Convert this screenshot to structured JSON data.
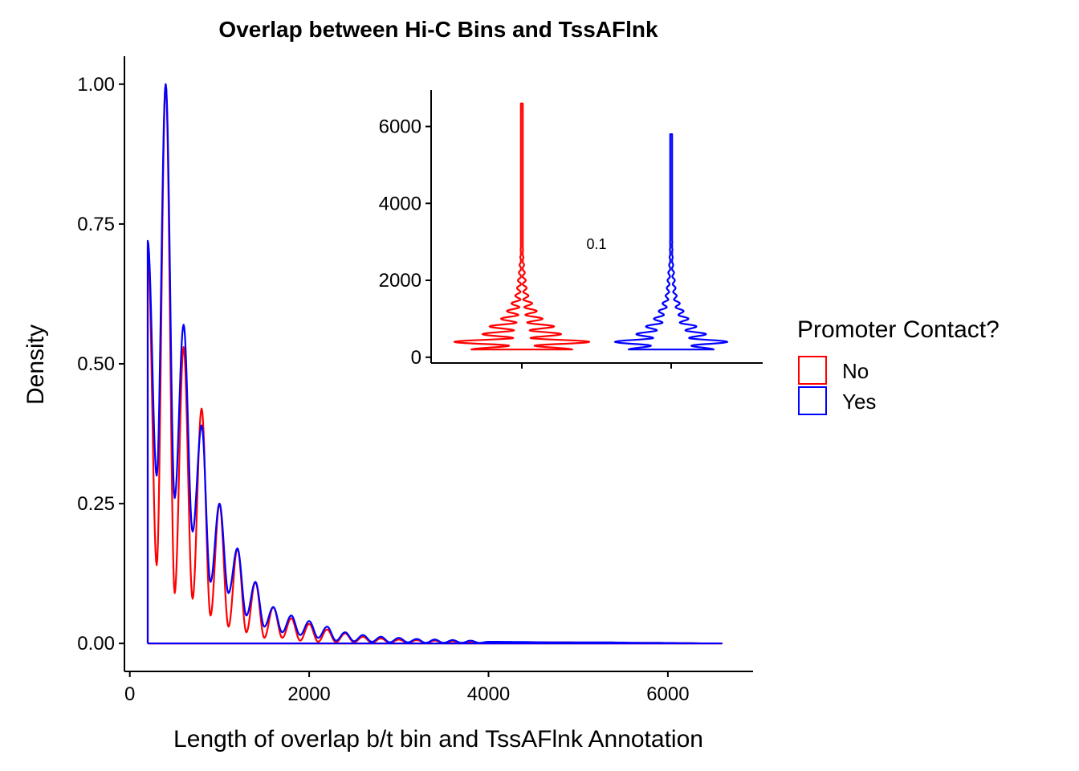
{
  "chart_data": [
    {
      "type": "line",
      "subtype": "density",
      "title": "Overlap between Hi-C Bins and TssAFlnk",
      "xlabel": "Length of overlap b/t bin and TssAFlnk Annotation",
      "ylabel": "Density",
      "xlim": [
        -60,
        6950
      ],
      "ylim": [
        -0.05,
        1.05
      ],
      "x_ticks": [
        0,
        2000,
        4000,
        6000
      ],
      "x_tick_labels": [
        "0",
        "2000",
        "4000",
        "6000"
      ],
      "y_ticks": [
        0,
        0.25,
        0.5,
        0.75,
        1.0
      ],
      "y_tick_labels": [
        "0.00",
        "0.25",
        "0.50",
        "0.75",
        "1.00"
      ],
      "grid": false,
      "legend_position": "right",
      "series": [
        {
          "name": "No",
          "color": "#ff0000",
          "x": [
            200,
            300,
            400,
            500,
            600,
            700,
            800,
            900,
            1000,
            1100,
            1200,
            1300,
            1400,
            1500,
            1600,
            1700,
            1800,
            1900,
            2000,
            2100,
            2200,
            2300,
            2400,
            2500,
            2600,
            2700,
            2800,
            2900,
            3000,
            3100,
            3200,
            3300,
            3400,
            3500,
            3600,
            3700,
            3800,
            3900,
            4000,
            4800,
            5200,
            5800,
            6600
          ],
          "values": [
            0.71,
            0.14,
            1.0,
            0.09,
            0.53,
            0.08,
            0.42,
            0.05,
            0.25,
            0.03,
            0.17,
            0.02,
            0.11,
            0.01,
            0.065,
            0.01,
            0.045,
            0.005,
            0.035,
            0.003,
            0.025,
            0.002,
            0.018,
            0.002,
            0.012,
            0.001,
            0.009,
            0.001,
            0.007,
            0.001,
            0.006,
            0.001,
            0.005,
            0.001,
            0.004,
            0.001,
            0.003,
            0.0,
            0.002,
            0.002,
            0.001,
            0.001,
            0.0
          ]
        },
        {
          "name": "Yes",
          "color": "#0000ff",
          "x": [
            200,
            300,
            400,
            500,
            600,
            700,
            800,
            900,
            1000,
            1100,
            1200,
            1300,
            1400,
            1500,
            1600,
            1700,
            1800,
            1900,
            2000,
            2100,
            2200,
            2300,
            2400,
            2500,
            2600,
            2700,
            2800,
            2900,
            3000,
            3100,
            3200,
            3300,
            3400,
            3500,
            3600,
            3700,
            3800,
            3900,
            4000,
            4800,
            5200,
            5800,
            6600
          ],
          "values": [
            0.72,
            0.3,
            1.0,
            0.26,
            0.57,
            0.2,
            0.39,
            0.11,
            0.25,
            0.09,
            0.17,
            0.05,
            0.11,
            0.03,
            0.065,
            0.02,
            0.05,
            0.015,
            0.04,
            0.01,
            0.03,
            0.005,
            0.02,
            0.004,
            0.015,
            0.003,
            0.012,
            0.002,
            0.01,
            0.002,
            0.008,
            0.001,
            0.007,
            0.001,
            0.006,
            0.001,
            0.005,
            0.001,
            0.003,
            0.002,
            0.002,
            0.001,
            0.0
          ]
        }
      ],
      "legend": {
        "title": "Promoter Contact?",
        "entries": [
          {
            "label": "No",
            "color": "#ff0000"
          },
          {
            "label": "Yes",
            "color": "#0000ff"
          }
        ]
      }
    },
    {
      "type": "violin",
      "title": "",
      "ylim": [
        -150,
        6950
      ],
      "y_ticks": [
        0,
        2000,
        4000,
        6000
      ],
      "y_tick_labels": [
        "0",
        "2000",
        "4000",
        "6000"
      ],
      "categories": [
        "No",
        "Yes"
      ],
      "series": [
        {
          "name": "No",
          "color": "#ff0000",
          "min": 200,
          "max": 6600
        },
        {
          "name": "Yes",
          "color": "#0000ff",
          "min": 200,
          "max": 5800
        }
      ],
      "annotation": "0.1"
    }
  ]
}
